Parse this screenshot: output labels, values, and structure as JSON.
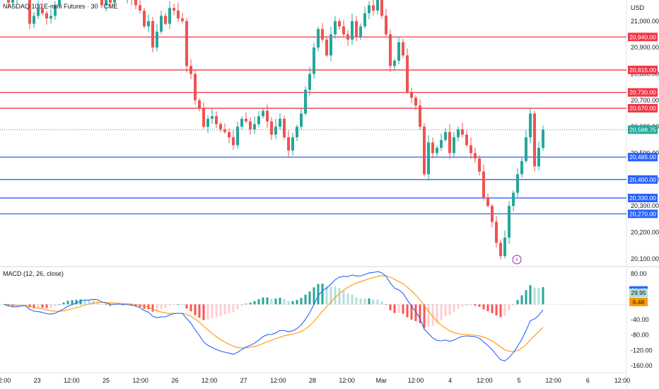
{
  "header": {
    "symbol_title": "NASDAQ 100 E-mini Futures · 30 · CME",
    "currency": "USD",
    "macd_title": "MACD (12, 26, close)"
  },
  "colors": {
    "up": "#26a69a",
    "down": "#ef5350",
    "resistance": "#f23645",
    "support": "#2962ff",
    "last_price": "#26a69a",
    "macd_line": "#2962ff",
    "signal_line": "#ff9800",
    "hist_up_strong": "#26a69a",
    "hist_up_weak": "#b2dfdb",
    "hist_down_strong": "#ff5252",
    "hist_down_weak": "#ffcdd2",
    "macd_badge": "#2962ff",
    "hist_badge": "#b2dfdb",
    "signal_badge": "#ff9800"
  },
  "chart_data": [
    {
      "type": "candlestick",
      "title": "NASDAQ 100 E-mini Futures · 30 · CME",
      "y_unit": "USD",
      "ylim": [
        20070,
        21080
      ],
      "y_ticks": [
        "21,000.00",
        "20,900.00",
        "20,800.00",
        "20,700.00",
        "20,600.00",
        "20,500.00",
        "20,400.00",
        "20,300.00",
        "20,200.00",
        "20,100.00"
      ],
      "x_ticks": [
        "12:00",
        "23",
        "12:00",
        "25",
        "12:00",
        "26",
        "12:00",
        "27",
        "12:00",
        "28",
        "12:00",
        "Mar",
        "12:00",
        "4",
        "12:00",
        "5",
        "12:00",
        "6",
        "12:00"
      ],
      "resistance_levels": [
        "20,940.00",
        "20,815.00",
        "20,730.00",
        "20,670.00"
      ],
      "support_levels": [
        "20,485.00",
        "20,400.00",
        "20,330.00",
        "20,270.00"
      ],
      "last_price": "20,588.75",
      "grid": false,
      "series": [
        {
          "close": [
            21120,
            21070,
            21080,
            21100,
            21130,
            21110,
            20990,
            21020,
            21050,
            21030,
            21010,
            21020,
            21060,
            21100,
            21120,
            21150,
            21130,
            21140,
            21160,
            21150,
            21130,
            21150,
            21120,
            21060,
            21080,
            21070,
            21100,
            21110,
            21090,
            21100,
            21080,
            21060,
            21040,
            20980,
            21000,
            20900,
            20960,
            21020,
            20990,
            21050,
            21040,
            21010,
            21000,
            20830,
            20800,
            20700,
            20670,
            20600,
            20630,
            20640,
            20610,
            20590,
            20580,
            20560,
            20530,
            20600,
            20630,
            20620,
            20590,
            20610,
            20640,
            20660,
            20620,
            20570,
            20600,
            20630,
            20560,
            20510,
            20560,
            20600,
            20650,
            20740,
            20800,
            20900,
            20970,
            20930,
            20870,
            20950,
            21000,
            20980,
            20950,
            20930,
            21000,
            20940,
            20980,
            21030,
            21060,
            21040,
            21080,
            21020,
            20950,
            20830,
            20850,
            20920,
            20870,
            20730,
            20710,
            20680,
            20600,
            20420,
            20540,
            20500,
            20520,
            20550,
            20580,
            20500,
            20560,
            20590,
            20570,
            20530,
            20500,
            20480,
            20430,
            20330,
            20300,
            20240,
            20160,
            20110,
            20180,
            20300,
            20350,
            20420,
            20470,
            20560,
            20650,
            20450,
            20520,
            20588.75
          ]
        }
      ]
    },
    {
      "type": "bar",
      "title": "MACD (12, 26, close)",
      "ylim": [
        -175,
        95
      ],
      "y_ticks": [
        "80.00",
        "-40.00",
        "-80.00",
        "-120.00",
        "-160.00"
      ],
      "badges": {
        "macd": "36.43",
        "histogram": "29.95",
        "signal": "6.48"
      },
      "series": [
        {
          "name": "MACD",
          "values": []
        },
        {
          "name": "Signal",
          "values": []
        },
        {
          "name": "Histogram",
          "values": []
        }
      ]
    }
  ]
}
